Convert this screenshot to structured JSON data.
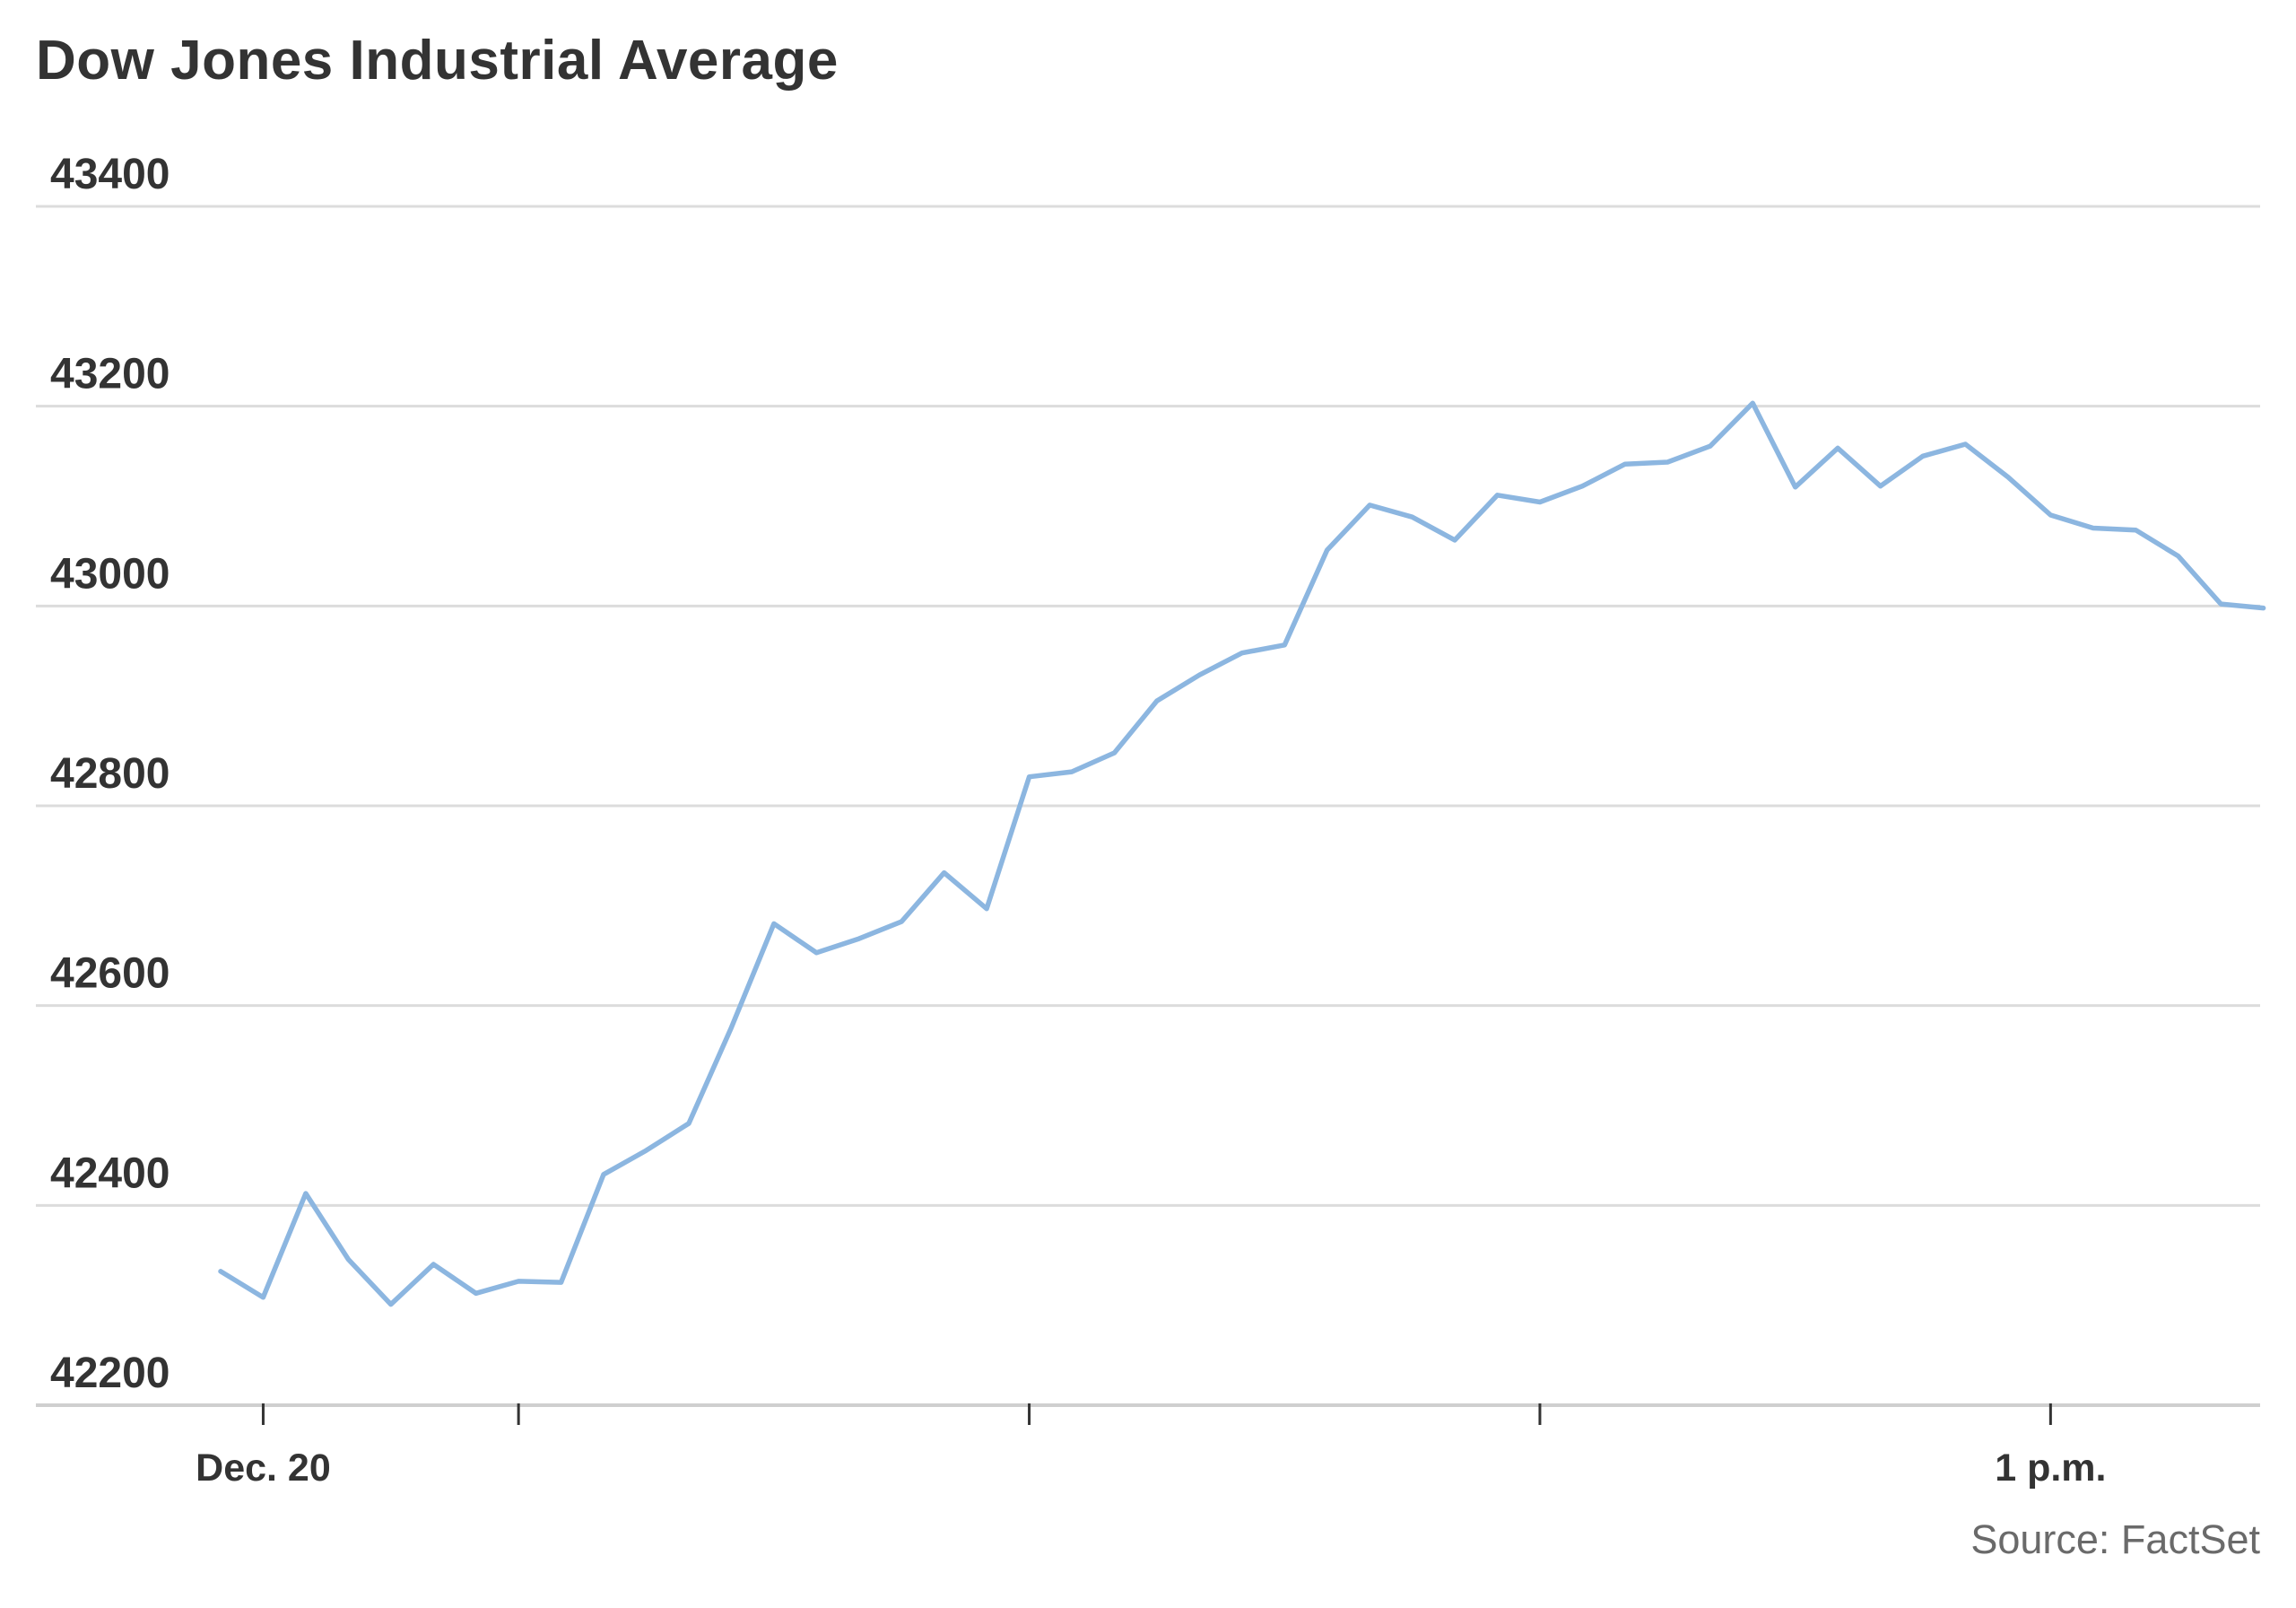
{
  "chart_data": {
    "type": "line",
    "title": "Dow Jones Industrial Average",
    "source": "Source: FactSet",
    "ylim": [
      42200,
      43400
    ],
    "yticks": [
      43400,
      43200,
      43000,
      42800,
      42600,
      42400,
      42200
    ],
    "xticks_labeled": [
      {
        "label": "Dec. 20",
        "index": 1
      },
      {
        "label": "1 p.m.",
        "index": 43
      }
    ],
    "xticks_unlabeled_index": [
      7,
      19,
      31
    ],
    "grid": true,
    "legend": "none",
    "line_color": "#8cb6e0",
    "series": [
      {
        "values": [
          42334,
          42308,
          42412,
          42346,
          42301,
          42341,
          42312,
          42324,
          42323,
          42431,
          42455,
          42482,
          42578,
          42682,
          42653,
          42667,
          42684,
          42733,
          42697,
          42829,
          42834,
          42853,
          42905,
          42931,
          42953,
          42961,
          43056,
          43101,
          43089,
          43066,
          43111,
          43104,
          43120,
          43142,
          43144,
          43160,
          43203,
          43119,
          43158,
          43120,
          43150,
          43162,
          43129,
          43091,
          43078,
          43076,
          43050,
          43002,
          42998
        ]
      }
    ]
  }
}
